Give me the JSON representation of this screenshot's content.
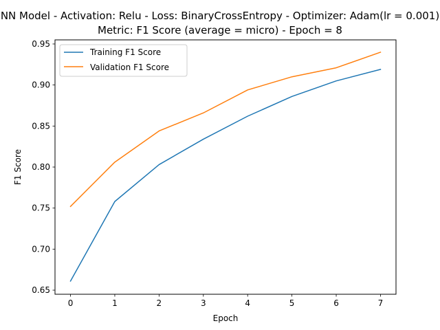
{
  "chart_data": {
    "type": "line",
    "title_line1": "NN Model - Activation: Relu - Loss: BinaryCrossEntropy - Optimizer: Adam(lr = 0.001)",
    "title_line2": "Metric: F1 Score (average = micro) - Epoch = 8",
    "xlabel": "Epoch",
    "ylabel": "F1 Score",
    "x": [
      0,
      1,
      2,
      3,
      4,
      5,
      6,
      7
    ],
    "xlim": [
      -0.35,
      7.35
    ],
    "ylim": [
      0.645,
      0.955
    ],
    "xticks": [
      0,
      1,
      2,
      3,
      4,
      5,
      6,
      7
    ],
    "yticks": [
      0.65,
      0.7,
      0.75,
      0.8,
      0.85,
      0.9,
      0.95
    ],
    "ytick_labels": [
      "0.65",
      "0.70",
      "0.75",
      "0.80",
      "0.85",
      "0.90",
      "0.95"
    ],
    "grid": false,
    "legend_position": "upper-left",
    "series": [
      {
        "name": "Training F1 Score",
        "color": "#1f77b4",
        "values": [
          0.661,
          0.758,
          0.803,
          0.834,
          0.862,
          0.886,
          0.905,
          0.919
        ]
      },
      {
        "name": "Validation F1 Score",
        "color": "#ff7f0e",
        "values": [
          0.752,
          0.806,
          0.844,
          0.866,
          0.894,
          0.91,
          0.921,
          0.94
        ]
      }
    ]
  }
}
